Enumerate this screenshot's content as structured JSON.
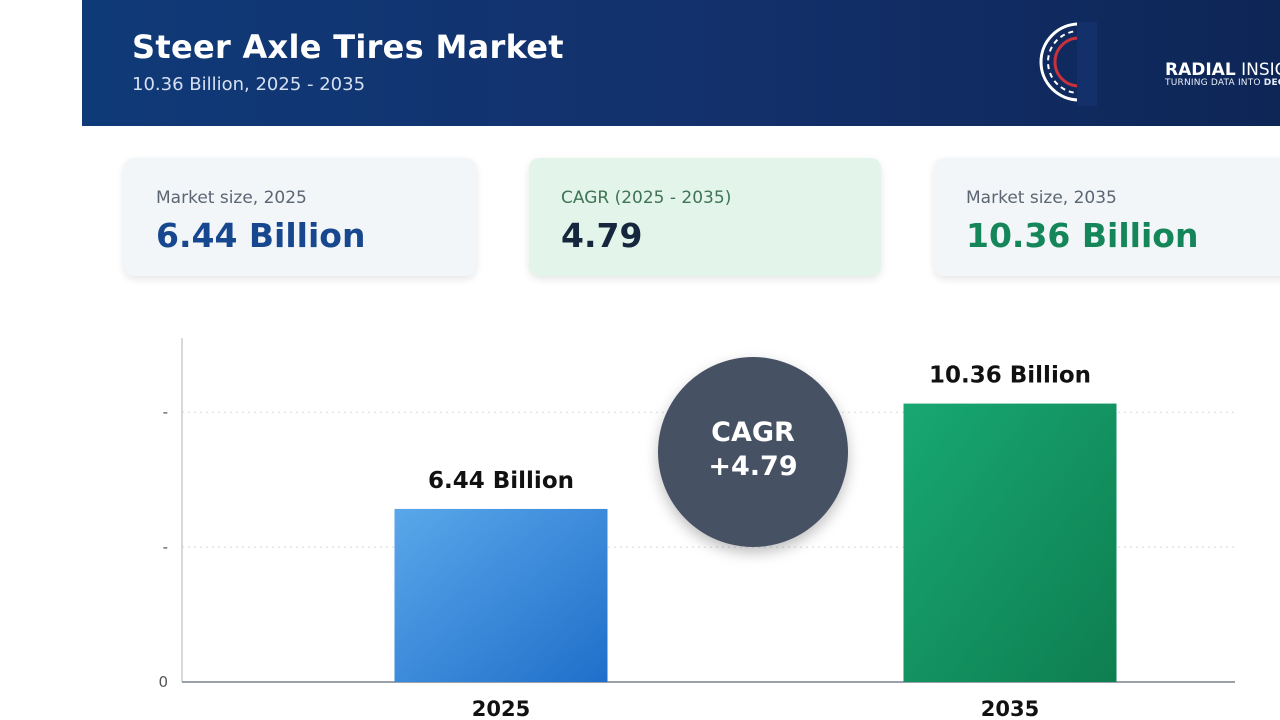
{
  "header": {
    "title": "Steer Axle Tires Market",
    "subtitle": "10.36 Billion, 2025 - 2035"
  },
  "logo": {
    "name_bold": "RADIAL",
    "name_rest": " INSIGHTS",
    "tagline_start": "TURNING DATA INTO ",
    "tagline_bold": "DECISION"
  },
  "cards": [
    {
      "label": "Market size, 2025",
      "value": "6.44 Billion"
    },
    {
      "label": "CAGR (2025 - 2035)",
      "value": "4.79"
    },
    {
      "label": "Market size, 2035",
      "value": "10.36 Billion"
    }
  ],
  "cagr_bubble": {
    "line1": "CAGR",
    "line2": "+4.79"
  },
  "colors": {
    "header_bg": "#13306b",
    "bar_2025": "#2d7fd6",
    "bar_2035": "#12935f",
    "bubble_bg": "#465164"
  },
  "chart_data": {
    "type": "bar",
    "categories": [
      "2025",
      "2035"
    ],
    "values": [
      6.44,
      10.36
    ],
    "data_labels": [
      "6.44 Billion",
      "10.36 Billion"
    ],
    "ytick_labels": [
      "0",
      "-",
      "-"
    ],
    "ylim": [
      0,
      12.8
    ],
    "grid": true,
    "legend": "none"
  }
}
